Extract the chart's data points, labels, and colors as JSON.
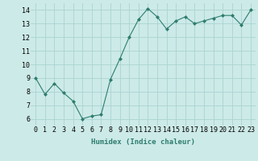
{
  "x": [
    0,
    1,
    2,
    3,
    4,
    5,
    6,
    7,
    8,
    9,
    10,
    11,
    12,
    13,
    14,
    15,
    16,
    17,
    18,
    19,
    20,
    21,
    22,
    23
  ],
  "y": [
    9.0,
    7.8,
    8.6,
    7.9,
    7.3,
    6.0,
    6.2,
    6.3,
    8.9,
    10.4,
    12.0,
    13.3,
    14.1,
    13.5,
    12.6,
    13.2,
    13.5,
    13.0,
    13.2,
    13.4,
    13.6,
    13.6,
    12.9,
    14.0
  ],
  "line_color": "#2e7d6e",
  "marker": "D",
  "marker_size": 2.0,
  "bg_color": "#cceae8",
  "grid_color": "#aad4d0",
  "xlabel": "Humidex (Indice chaleur)",
  "xlim": [
    -0.5,
    23.5
  ],
  "ylim": [
    5.5,
    14.5
  ],
  "yticks": [
    6,
    7,
    8,
    9,
    10,
    11,
    12,
    13,
    14
  ],
  "xtick_labels": [
    "0",
    "1",
    "2",
    "3",
    "4",
    "5",
    "6",
    "7",
    "8",
    "9",
    "10",
    "11",
    "12",
    "13",
    "14",
    "15",
    "16",
    "17",
    "18",
    "19",
    "20",
    "21",
    "22",
    "23"
  ],
  "label_fontsize": 6.5,
  "tick_fontsize": 6.0
}
